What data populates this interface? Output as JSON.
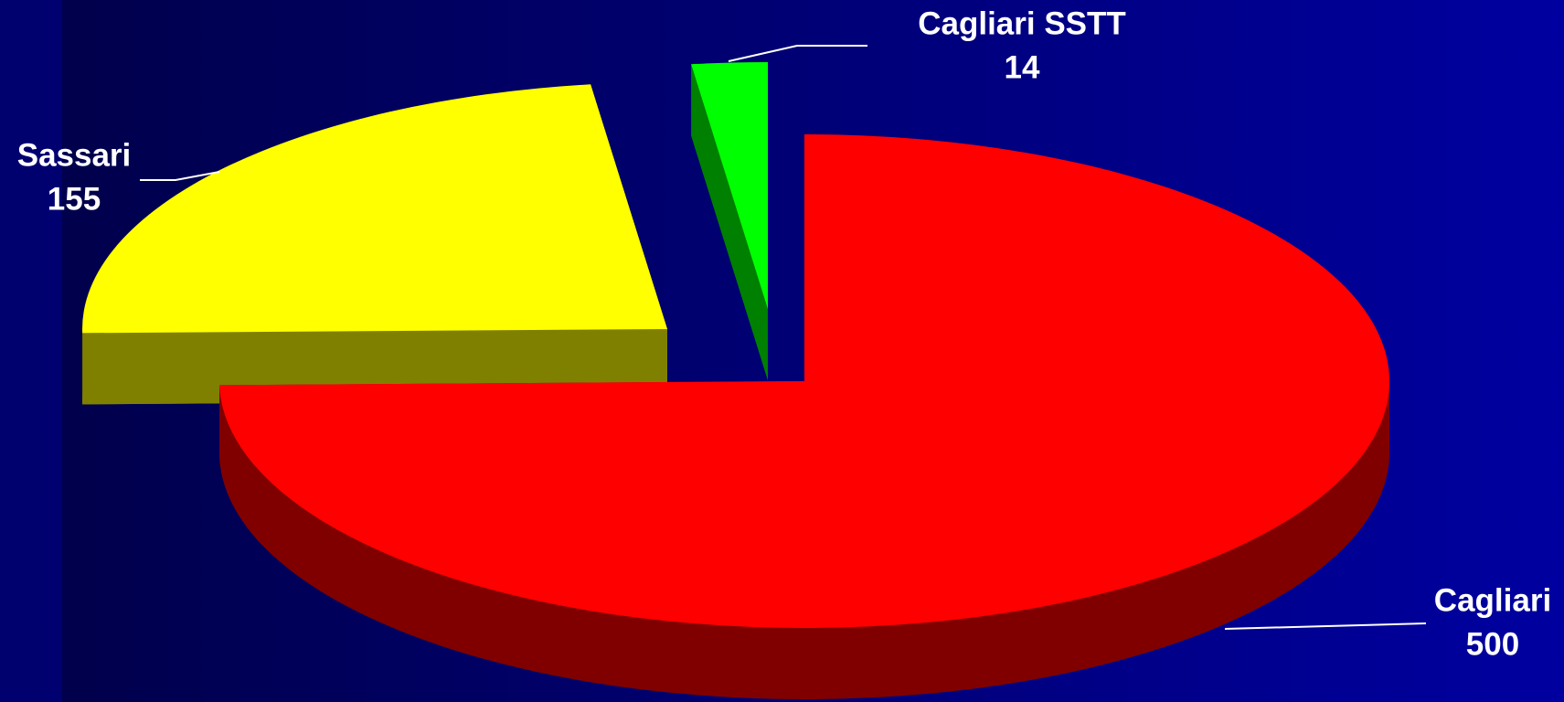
{
  "chart_data": {
    "type": "pie",
    "categories": [
      "Cagliari",
      "Sassari",
      "Cagliari SSTT"
    ],
    "values": [
      500,
      155,
      14
    ],
    "colors": [
      "#ff0000",
      "#ffff00",
      "#00ff00"
    ],
    "three_d": true
  }
}
